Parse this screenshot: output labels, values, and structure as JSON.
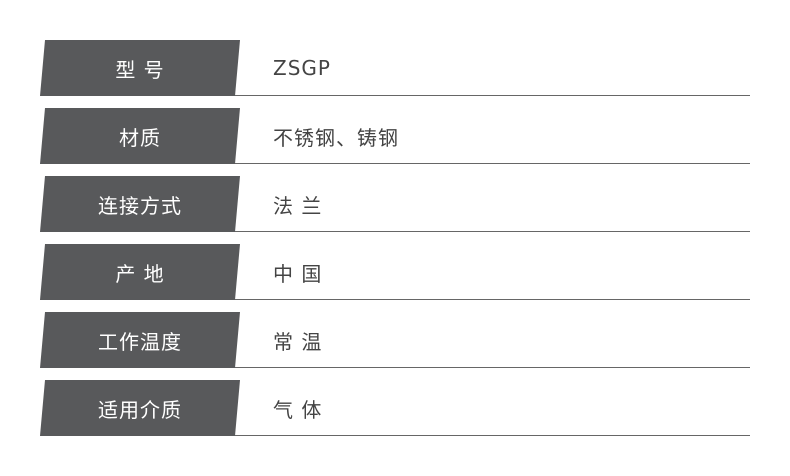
{
  "specs": [
    {
      "label": "型 号",
      "value": "ZSGP"
    },
    {
      "label": "材质",
      "value": "不锈钢、铸钢"
    },
    {
      "label": "连接方式",
      "value": "法 兰"
    },
    {
      "label": "产 地",
      "value": "中 国"
    },
    {
      "label": "工作温度",
      "value": "常 温"
    },
    {
      "label": "适用介质",
      "value": "气 体"
    }
  ],
  "colors": {
    "label_bg": "#58595b",
    "label_text": "#ffffff",
    "value_text": "#444444"
  }
}
